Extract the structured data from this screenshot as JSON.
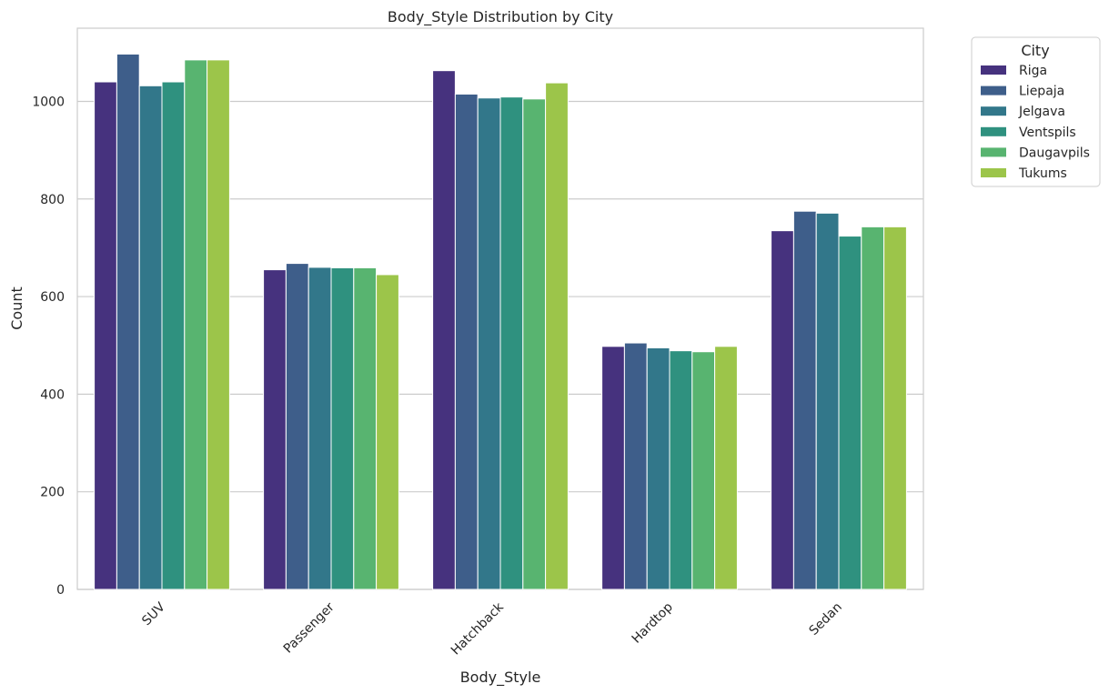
{
  "chart_data": {
    "type": "bar",
    "title": "Body_Style Distribution by City",
    "xlabel": "Body_Style",
    "ylabel": "Count",
    "ylim": [
      0,
      1150
    ],
    "yticks": [
      0,
      200,
      400,
      600,
      800,
      1000
    ],
    "grid": "horizontal",
    "legend_title": "City",
    "legend_position": "outside right, top",
    "categories": [
      "SUV",
      "Passenger",
      "Hatchback",
      "Hardtop",
      "Sedan"
    ],
    "series": [
      {
        "name": "Riga",
        "color": "#46327e",
        "values": [
          1040,
          655,
          1063,
          498,
          735
        ]
      },
      {
        "name": "Liepaja",
        "color": "#3e5e8a",
        "values": [
          1097,
          668,
          1015,
          505,
          775
        ]
      },
      {
        "name": "Jelgava",
        "color": "#32778a",
        "values": [
          1032,
          660,
          1007,
          495,
          771
        ]
      },
      {
        "name": "Ventspils",
        "color": "#2f917f",
        "values": [
          1040,
          659,
          1009,
          489,
          724
        ]
      },
      {
        "name": "Daugavpils",
        "color": "#58b470",
        "values": [
          1085,
          659,
          1005,
          487,
          743
        ]
      },
      {
        "name": "Tukums",
        "color": "#9cc54a",
        "values": [
          1085,
          645,
          1038,
          498,
          743
        ]
      }
    ]
  }
}
